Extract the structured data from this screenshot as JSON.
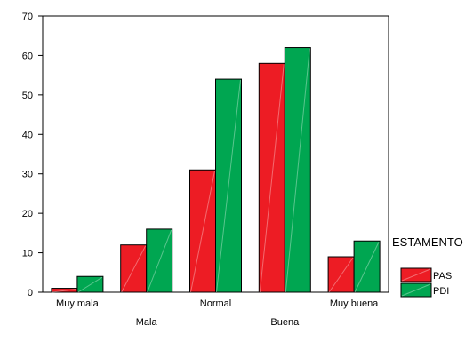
{
  "chart_data": {
    "type": "bar",
    "title": "",
    "xlabel": "",
    "ylabel": "",
    "categories": [
      "Muy mala",
      "Mala",
      "Normal",
      "Buena",
      "Muy buena"
    ],
    "series": [
      {
        "name": "PAS",
        "values": [
          1,
          12,
          31,
          58,
          9
        ],
        "color": "#ed1c24"
      },
      {
        "name": "PDI",
        "values": [
          4,
          16,
          54,
          62,
          13
        ],
        "color": "#00a651"
      }
    ],
    "ylim": [
      0,
      70
    ],
    "yticks": [
      0,
      10,
      20,
      30,
      40,
      50,
      60,
      70
    ],
    "grid": false,
    "legend": {
      "title": "ESTAMENTO",
      "placement": "right"
    }
  }
}
